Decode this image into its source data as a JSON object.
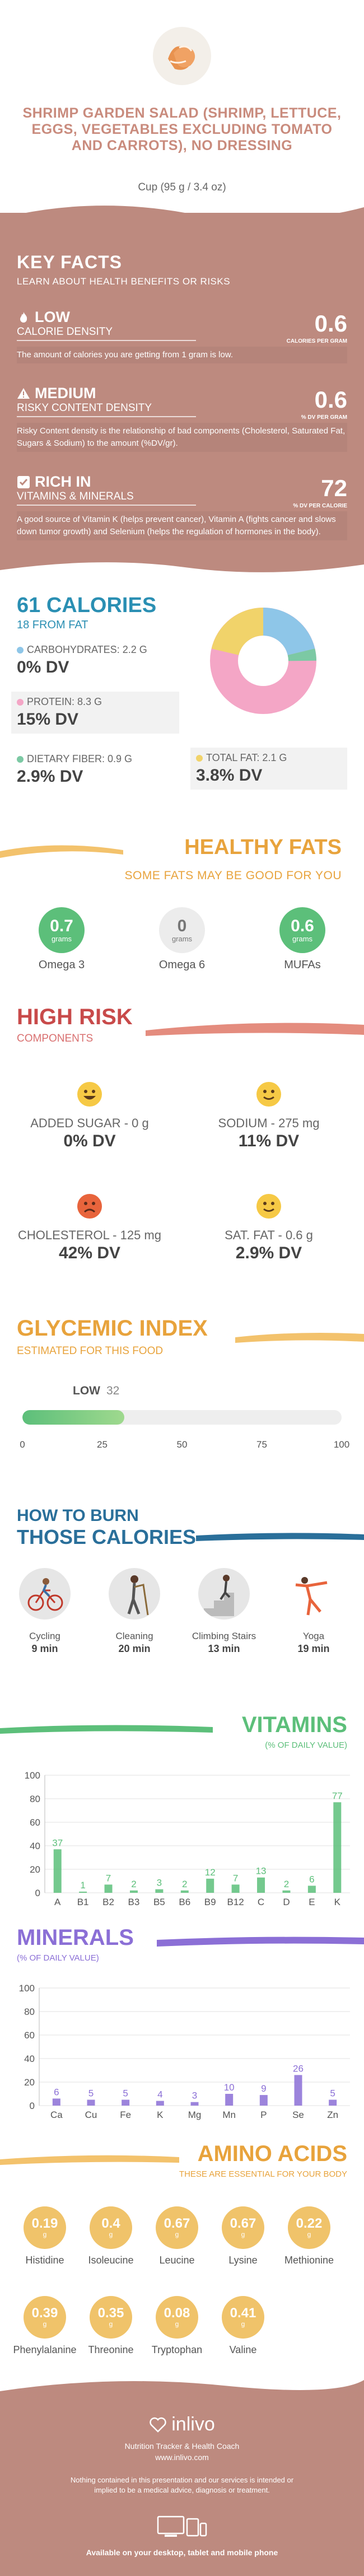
{
  "header": {
    "title": "SHRIMP GARDEN SALAD (SHRIMP, LETTUCE, EGGS, VEGETABLES EXCLUDING TOMATO AND CARROTS), NO DRESSING",
    "serving": "Cup (95 g / 3.4 oz)"
  },
  "key_facts": {
    "title": "KEY FACTS",
    "subtitle": "LEARN ABOUT HEALTH BENEFITS OR RISKS",
    "items": [
      {
        "level": "LOW",
        "category": "CALORIE DENSITY",
        "value": "0.6",
        "unit": "CALORIES PER GRAM",
        "icon": "flame-icon",
        "desc": "The amount of calories you are getting from 1 gram is low."
      },
      {
        "level": "MEDIUM",
        "category": "RISKY CONTENT DENSITY",
        "value": "0.6",
        "unit": "% DV PER GRAM",
        "icon": "warning-icon",
        "desc": "Risky Content density is the relationship of bad components (Cholesterol, Saturated Fat, Sugars & Sodium) to the amount (%DV/gr)."
      },
      {
        "level": "RICH  IN",
        "category": "VITAMINS & MINERALS",
        "value": "72",
        "unit": "% DV PER CALORIE",
        "icon": "check-icon",
        "desc": "A good source of Vitamin K (helps prevent cancer), Vitamin A (fights cancer and slows down tumor growth) and Selenium (helps the regulation of hormones in the body)."
      }
    ]
  },
  "calories": {
    "title": "61 CALORIES",
    "from_fat": "18 FROM FAT",
    "carbs": {
      "label": "CARBOHYDRATES: 2.2 g",
      "dv": "0% DV",
      "color": "#8ec6e8"
    },
    "protein": {
      "label": "PROTEIN: 8.3 g",
      "dv": "15% DV",
      "color": "#f4a6c6"
    },
    "fiber": {
      "label": "DIETARY FIBER: 0.9 g",
      "dv": "2.9% DV",
      "color": "#7cc9a4"
    },
    "fat": {
      "label": "TOTAL FAT: 2.1 g",
      "dv": "3.8% DV",
      "color": "#f1d36a"
    }
  },
  "healthy_fats": {
    "title": "HEALTHY FATS",
    "subtitle": "SOME FATS MAY BE GOOD FOR YOU",
    "unit": "grams",
    "items": [
      {
        "value": "0.7",
        "label": "Omega 3",
        "color": "#5cbf7a"
      },
      {
        "value": "0",
        "label": "Omega 6",
        "color": "#e8e8e8"
      },
      {
        "value": "0.6",
        "label": "MUFAs",
        "color": "#5cbf7a"
      }
    ]
  },
  "high_risk": {
    "title": "HIGH RISK",
    "subtitle": "COMPONENTS",
    "items": [
      {
        "name": "ADDED SUGAR",
        "amount": "0 g",
        "dv": "0% DV",
        "mood": "happy-face-icon"
      },
      {
        "name": "SODIUM",
        "amount": "275 mg",
        "dv": "11% DV",
        "mood": "smile-face-icon"
      },
      {
        "name": "CHOLESTEROL",
        "amount": "125 mg",
        "dv": "42% DV",
        "mood": "sad-face-icon"
      },
      {
        "name": "SAT. FAT",
        "amount": "0.6 g",
        "dv": "2.9% DV",
        "mood": "smile-face-icon"
      }
    ]
  },
  "glycemic": {
    "title": "GLYCEMIC INDEX",
    "subtitle": "ESTIMATED FOR THIS FOOD",
    "level": "LOW",
    "value": 32,
    "ticks": [
      "0",
      "25",
      "50",
      "75",
      "100"
    ]
  },
  "burn": {
    "title1": "HOW TO BURN",
    "title2": "THOSE CALORIES",
    "items": [
      {
        "label": "Cycling",
        "time": "9 min",
        "icon": "cycling-icon"
      },
      {
        "label": "Cleaning",
        "time": "20 min",
        "icon": "cleaning-icon"
      },
      {
        "label": "Climbing Stairs",
        "time": "13 min",
        "icon": "stairs-icon"
      },
      {
        "label": "Yoga",
        "time": "19 min",
        "icon": "yoga-icon"
      }
    ]
  },
  "vitamins": {
    "title": "VITAMINS",
    "subtitle": "(% OF DAILY VALUE)"
  },
  "minerals": {
    "title": "MINERALS",
    "subtitle": "(% OF DAILY VALUE)"
  },
  "chart_data": [
    {
      "type": "bar",
      "categories": [
        "A",
        "B1",
        "B2",
        "B3",
        "B5",
        "B6",
        "B9",
        "B12",
        "C",
        "D",
        "E",
        "K"
      ],
      "values": [
        37,
        1,
        7,
        2,
        3,
        2,
        12,
        7,
        13,
        2,
        6,
        77
      ],
      "ylim": [
        0,
        100
      ],
      "yticks": [
        "0",
        "20",
        "40",
        "60",
        "80",
        "100"
      ],
      "color": "#5cbf7a"
    },
    {
      "type": "bar",
      "categories": [
        "Ca",
        "Cu",
        "Fe",
        "K",
        "Mg",
        "Mn",
        "P",
        "Se",
        "Zn"
      ],
      "values": [
        6,
        5,
        5,
        4,
        3,
        10,
        9,
        26,
        5
      ],
      "ylim": [
        0,
        100
      ],
      "yticks": [
        "0",
        "20",
        "40",
        "60",
        "80",
        "100"
      ],
      "color": "#8b6fd6"
    }
  ],
  "amino": {
    "title": "AMINO ACIDS",
    "subtitle": "THESE ARE ESSENTIAL FOR YOUR BODY",
    "unit": "g",
    "items": [
      {
        "value": "0.19",
        "label": "Histidine"
      },
      {
        "value": "0.4",
        "label": "Isoleucine"
      },
      {
        "value": "0.67",
        "label": "Leucine"
      },
      {
        "value": "0.67",
        "label": "Lysine"
      },
      {
        "value": "0.22",
        "label": "Methionine"
      },
      {
        "value": "0.39",
        "label": "Phenylalanine"
      },
      {
        "value": "0.35",
        "label": "Threonine"
      },
      {
        "value": "0.08",
        "label": "Tryptophan"
      },
      {
        "value": "0.41",
        "label": "Valine"
      }
    ]
  },
  "footer": {
    "brand": "inlivo",
    "tagline": "Nutrition Tracker & Health Coach",
    "url": "www.inlivo.com",
    "disclaimer": "Nothing contained in this presentation and our services is intended or implied to be a medical advice, diagnosis or treatment.",
    "available": "Available on your desktop, tablet and mobile phone"
  }
}
